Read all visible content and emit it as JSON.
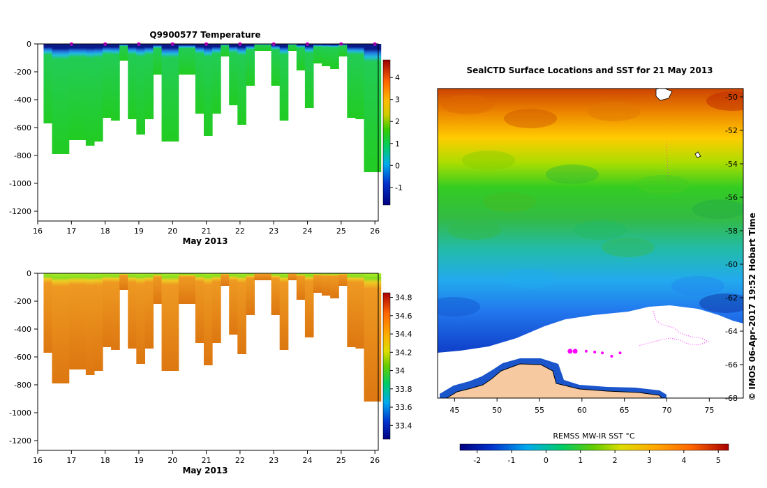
{
  "chart_data": [
    {
      "type": "heatmap",
      "title": "Q9900577  Temperature",
      "xlabel": "May 2013",
      "ylabel": "",
      "xlim": [
        16,
        26.1
      ],
      "ylim": [
        -1270,
        0
      ],
      "xticks": [
        "16",
        "17",
        "18",
        "19",
        "20",
        "21",
        "22",
        "23",
        "24",
        "25",
        "26"
      ],
      "yticks": [
        "0",
        "-200",
        "-400",
        "-600",
        "-800",
        "-1000",
        "-1200"
      ],
      "profile_days": [
        16.3,
        16.55,
        16.8,
        17.05,
        17.3,
        17.55,
        17.8,
        18.05,
        18.3,
        18.55,
        18.8,
        19.05,
        19.3,
        19.55,
        19.8,
        20.05,
        20.3,
        20.55,
        20.8,
        21.05,
        21.3,
        21.55,
        21.8,
        22.05,
        22.3,
        22.55,
        22.8,
        23.05,
        23.3,
        23.55,
        23.8,
        24.05,
        24.3,
        24.55,
        24.8,
        25.05,
        25.3,
        25.55,
        25.8,
        26.05
      ],
      "profile_depths": [
        -570,
        -790,
        -790,
        -690,
        -690,
        -730,
        -700,
        -530,
        -550,
        -120,
        -540,
        -650,
        -540,
        -220,
        -700,
        -700,
        -220,
        -220,
        -500,
        -660,
        -500,
        -90,
        -440,
        -580,
        -300,
        -50,
        -50,
        -300,
        -550,
        -50,
        -190,
        -460,
        -140,
        -160,
        -180,
        -90,
        -530,
        -540,
        -920,
        -920
      ],
      "colorbar": {
        "label": "",
        "ticks": [
          "4",
          "3",
          "2",
          "1",
          "0",
          "-1"
        ],
        "min": -1.8,
        "max": 4.8
      },
      "surface_markers": [
        "17",
        "18",
        "19",
        "20",
        "21",
        "22",
        "23",
        "24",
        "25",
        "26"
      ]
    },
    {
      "type": "heatmap",
      "title": "",
      "xlabel": "May 2013",
      "ylabel": "",
      "xlim": [
        16,
        26.1
      ],
      "ylim": [
        -1270,
        0
      ],
      "xticks": [
        "16",
        "17",
        "18",
        "19",
        "20",
        "21",
        "22",
        "23",
        "24",
        "25",
        "26"
      ],
      "yticks": [
        "0",
        "-200",
        "-400",
        "-600",
        "-800",
        "-1000",
        "-1200"
      ],
      "colorbar": {
        "label": "",
        "ticks": [
          "34.8",
          "34.6",
          "34.4",
          "34.2",
          "34",
          "33.8",
          "33.6",
          "33.4"
        ],
        "min": 33.25,
        "max": 34.85
      }
    },
    {
      "type": "heatmap",
      "title": "SealCTD Surface Locations and SST for 21 May 2013",
      "xlabel": "",
      "ylabel": "",
      "xlim": [
        43,
        79
      ],
      "ylim": [
        -68,
        -49.5
      ],
      "xticks": [
        "45",
        "50",
        "55",
        "60",
        "65",
        "70",
        "75"
      ],
      "yticks": [
        "-50",
        "-52",
        "-54",
        "-56",
        "-58",
        "-60",
        "-62",
        "-64",
        "-66",
        "-68"
      ],
      "colorbar": {
        "label": "REMSS MW-IR SST °C",
        "ticks": [
          "-2",
          "-1",
          "0",
          "1",
          "2",
          "3",
          "4",
          "5"
        ],
        "min": -2.5,
        "max": 5.3
      },
      "side_text": "© IMOS 06-Apr-2017 19:52 Hobart Time",
      "track_points": [
        [
          58.6,
          -65.2
        ],
        [
          59.2,
          -65.2
        ],
        [
          60.5,
          -65.2
        ],
        [
          61.5,
          -65.25
        ],
        [
          62.4,
          -65.3
        ],
        [
          63.5,
          -65.5
        ],
        [
          64.5,
          -65.3
        ]
      ]
    }
  ],
  "colors": {
    "axis": "#000000",
    "land": "#f7c9a0",
    "ice": "#ffffff",
    "track": "#ff00ff"
  }
}
